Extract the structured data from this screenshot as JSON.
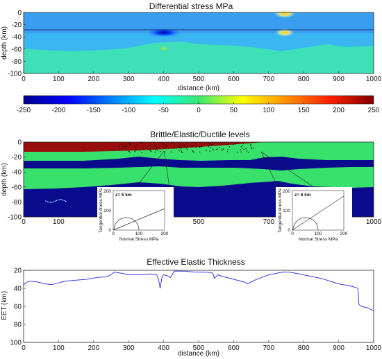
{
  "chart_data": [
    {
      "type": "heatmap",
      "title": "Differential stress MPa",
      "xlabel": "distance (km)",
      "ylabel": "depth (km)",
      "xlim": [
        0,
        1000
      ],
      "ylim": [
        -100,
        0
      ],
      "x_ticks": [
        "0",
        "100",
        "200",
        "300",
        "400",
        "500",
        "600",
        "700",
        "800",
        "900",
        "1000"
      ],
      "y_ticks": [
        "0",
        "-20",
        "-40",
        "-60",
        "-80",
        "-100"
      ],
      "colorbar": {
        "range": [
          -250,
          250
        ],
        "ticks": [
          "-250",
          "-200",
          "-150",
          "-100",
          "-50",
          "0",
          "50",
          "100",
          "150",
          "200",
          "250"
        ]
      },
      "features": [
        {
          "label": "stress anomaly",
          "x": 400,
          "depth": -30,
          "value": -210
        },
        {
          "label": "stress anomaly",
          "x": 745,
          "depth": 0,
          "value": 90
        },
        {
          "label": "stress anomaly",
          "x": 745,
          "depth": -30,
          "value": 110
        },
        {
          "label": "stress anomaly",
          "x": 400,
          "depth": -60,
          "value": 60
        }
      ]
    },
    {
      "type": "heatmap",
      "title": "Brittle/Elastic/Ductile levels",
      "ylabel": "depth (km)",
      "xlim": [
        0,
        1000
      ],
      "ylim": [
        -100,
        0
      ],
      "x_ticks": [
        "0",
        "100",
        "200",
        "300",
        "400",
        "500",
        "600",
        "700",
        "800",
        "900",
        "1000"
      ],
      "y_ticks": [
        "0",
        "-20",
        "-40",
        "-60",
        "-80",
        "-100"
      ],
      "classes": [
        {
          "name": "brittle",
          "color": "#9a0d0d"
        },
        {
          "name": "elastic",
          "color": "#38e06c"
        },
        {
          "name": "ductile",
          "color": "#0a0a8c"
        }
      ],
      "brittle_base_depth": [
        {
          "x": 0,
          "depth": -12
        },
        {
          "x": 100,
          "depth": -12
        },
        {
          "x": 200,
          "depth": -11
        },
        {
          "x": 300,
          "depth": -7
        },
        {
          "x": 400,
          "depth": -5
        },
        {
          "x": 500,
          "depth": -5
        },
        {
          "x": 600,
          "depth": -1
        },
        {
          "x": 700,
          "depth": 0
        },
        {
          "x": 1000,
          "depth": 0
        }
      ],
      "insets": [
        {
          "label": "z= 6 km",
          "xlabel": "Normal Stress MPa",
          "ylabel": "Tangential stress MPa",
          "x_ticks": [
            "0",
            "100",
            "200"
          ],
          "y_ticks": [
            "0",
            "100",
            "200"
          ]
        },
        {
          "label": "z= 6 km",
          "xlabel": "Normal Stress MPa",
          "ylabel": "Tangential stress MPa",
          "x_ticks": [
            "0",
            "100",
            "200"
          ],
          "y_ticks": [
            "0",
            "100",
            "200"
          ]
        }
      ]
    },
    {
      "type": "line",
      "title": "Effective Elastic Thickness",
      "xlabel": "distance (km)",
      "ylabel": "EET (km)",
      "xlim": [
        0,
        1000
      ],
      "ylim": [
        100,
        20
      ],
      "x_ticks": [
        "0",
        "100",
        "200",
        "300",
        "400",
        "500",
        "600",
        "700",
        "800",
        "900",
        "1000"
      ],
      "y_ticks": [
        "20",
        "40",
        "60",
        "80",
        "100"
      ],
      "series": [
        {
          "color": "#3a3ad8",
          "x": [
            0,
            10,
            20,
            40,
            60,
            80,
            100,
            110,
            120,
            150,
            180,
            210,
            240,
            260,
            275,
            290,
            300,
            320,
            340,
            360,
            380,
            385,
            390,
            395,
            400,
            410,
            420,
            430,
            440,
            460,
            490,
            520,
            540,
            545,
            555,
            570,
            600,
            630,
            640,
            660,
            700,
            740,
            760,
            800,
            850,
            900,
            940,
            955,
            958,
            965,
            985,
            1000
          ],
          "y": [
            36,
            33,
            32,
            33,
            35,
            36,
            34,
            33,
            32,
            31,
            30,
            28,
            27,
            22,
            23,
            24,
            25,
            25,
            25,
            24,
            25,
            29,
            40,
            28,
            25,
            26,
            28,
            21,
            21,
            21,
            22,
            22,
            23,
            29,
            25,
            27,
            30,
            33,
            35,
            31,
            25,
            22,
            22,
            25,
            29,
            35,
            38,
            40,
            58,
            60,
            62,
            65
          ]
        }
      ]
    }
  ]
}
